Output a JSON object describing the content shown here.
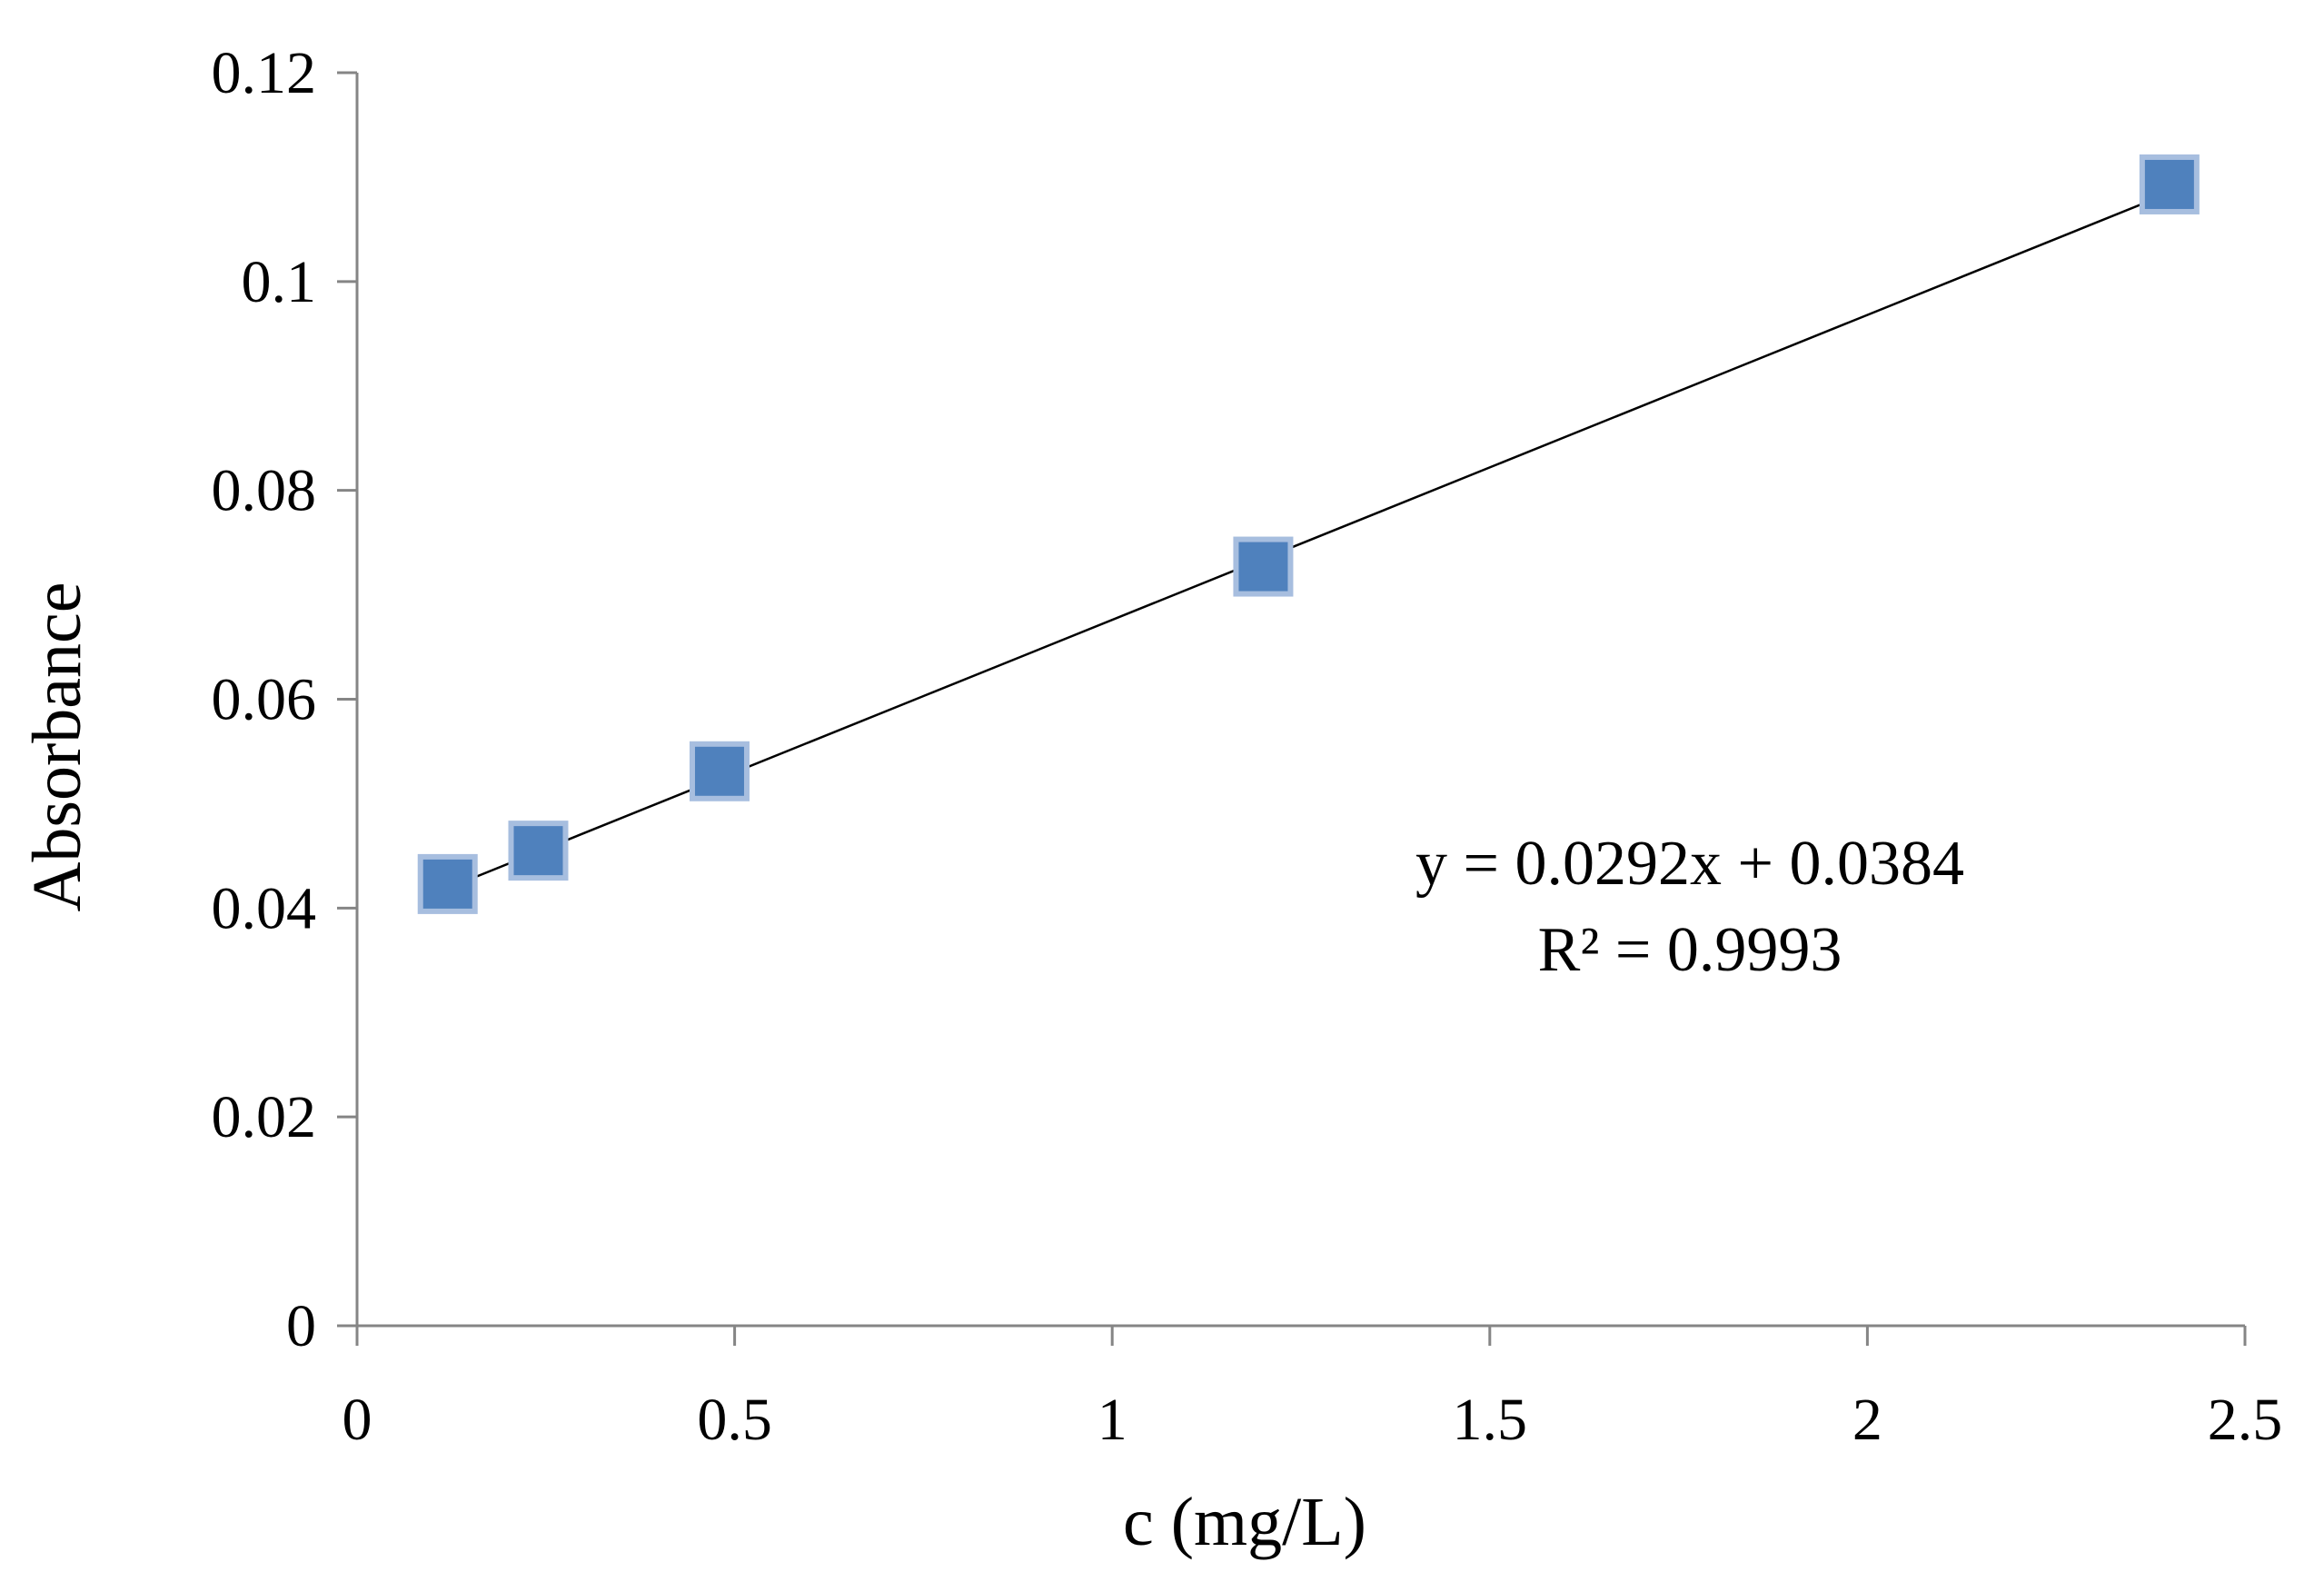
{
  "colors": {
    "marker_fill": "#4F81BD",
    "marker_stroke": "#A7BEDF",
    "axis": "#858585",
    "trendline": "#000000",
    "text": "#000000"
  },
  "chart_data": {
    "type": "scatter",
    "title": "",
    "xlabel": "c (mg/L)",
    "ylabel": "Absorbance",
    "xlim": [
      0,
      2.5
    ],
    "ylim": [
      0,
      0.12
    ],
    "grid": false,
    "legend": "none",
    "x_ticks": [
      "0",
      "0.5",
      "1",
      "1.5",
      "2",
      "2.5"
    ],
    "y_ticks": [
      "0",
      "0.02",
      "0.04",
      "0.06",
      "0.08",
      "0.1",
      "0.12"
    ],
    "series": [
      {
        "name": "Absorbance",
        "marker": "square",
        "points": [
          {
            "x": 0.12,
            "y": 0.0423
          },
          {
            "x": 0.24,
            "y": 0.0455
          },
          {
            "x": 0.48,
            "y": 0.0531
          },
          {
            "x": 1.2,
            "y": 0.0727
          },
          {
            "x": 2.4,
            "y": 0.1093
          }
        ]
      }
    ],
    "trendline": {
      "type": "linear",
      "slope": 0.0292,
      "intercept": 0.0384,
      "x_range": [
        0.12,
        2.4
      ],
      "equation_label": "y = 0.0292x + 0.0384",
      "r2_label": "R² = 0.9993"
    }
  }
}
